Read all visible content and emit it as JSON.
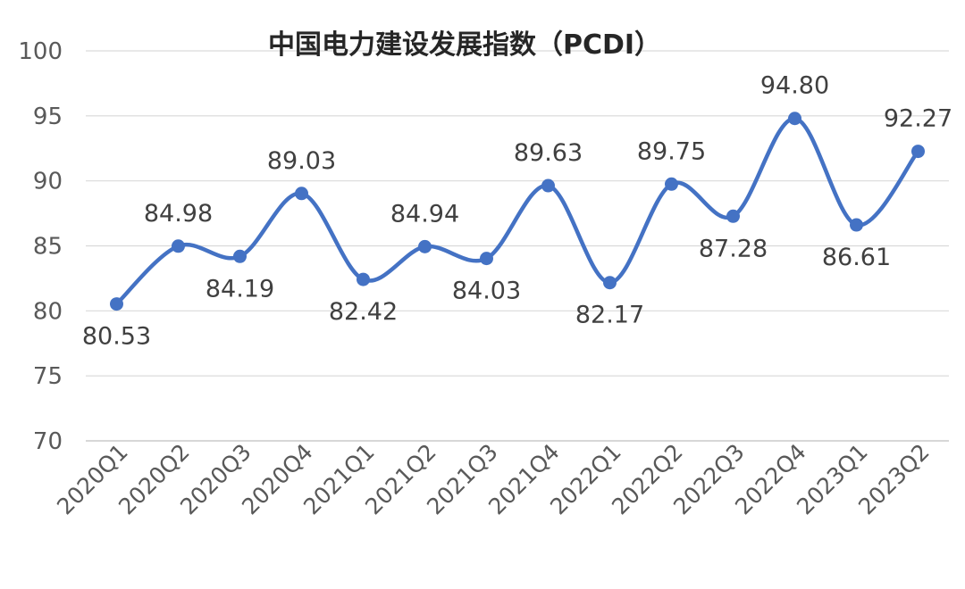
{
  "chart_data": {
    "type": "line",
    "title": "中国电力建设发展指数（PCDI）",
    "xlabel": "",
    "ylabel": "",
    "categories": [
      "2020Q1",
      "2020Q2",
      "2020Q3",
      "2020Q4",
      "2021Q1",
      "2021Q2",
      "2021Q3",
      "2021Q4",
      "2022Q1",
      "2022Q2",
      "2022Q3",
      "2022Q4",
      "2023Q1",
      "2023Q2"
    ],
    "series": [
      {
        "values": [
          80.53,
          84.98,
          84.19,
          89.03,
          82.42,
          84.94,
          84.03,
          89.63,
          82.17,
          89.75,
          87.28,
          94.8,
          86.61,
          92.27
        ],
        "labels": [
          "80.53",
          "84.98",
          "84.19",
          "89.03",
          "82.42",
          "84.94",
          "84.03",
          "89.63",
          "82.17",
          "89.75",
          "87.28",
          "94.80",
          "86.61",
          "92.27"
        ],
        "color": "#4472C4"
      }
    ],
    "ylim": [
      70,
      100
    ],
    "yticks": [
      "70",
      "75",
      "80",
      "85",
      "90",
      "95",
      "100"
    ],
    "grid": true,
    "smooth": true,
    "legend": "none"
  }
}
